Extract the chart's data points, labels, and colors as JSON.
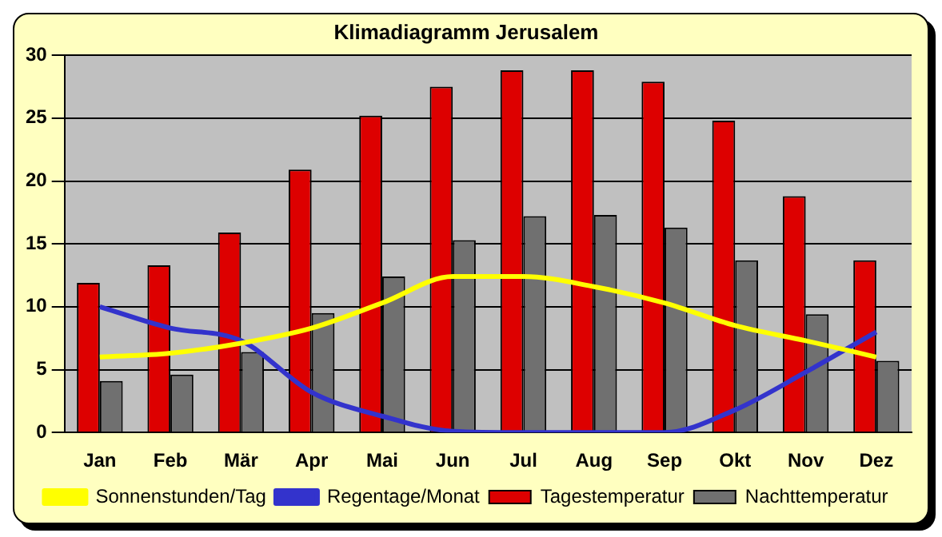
{
  "chart_data": {
    "type": "bar",
    "title": "Klimadiagramm Jerusalem",
    "categories": [
      "Jan",
      "Feb",
      "Mär",
      "Apr",
      "Mai",
      "Jun",
      "Jul",
      "Aug",
      "Sep",
      "Okt",
      "Nov",
      "Dez"
    ],
    "series": [
      {
        "name": "Tagestemperatur",
        "color": "#dd0000",
        "values": [
          11.9,
          13.3,
          15.9,
          20.9,
          25.2,
          27.5,
          28.8,
          28.8,
          27.9,
          24.8,
          18.8,
          13.7
        ]
      },
      {
        "name": "Nachttemperatur",
        "color": "#707070",
        "values": [
          4.1,
          4.6,
          6.4,
          9.5,
          12.4,
          15.3,
          17.2,
          17.3,
          16.3,
          13.7,
          9.4,
          5.7
        ]
      },
      {
        "name": "Sonnenstunden/Tag",
        "type": "line",
        "color": "#ffff00",
        "values": [
          6.0,
          6.3,
          7.1,
          8.3,
          10.3,
          12.4,
          12.4,
          11.6,
          10.3,
          8.5,
          7.3,
          6.0
        ]
      },
      {
        "name": "Regentage/Monat",
        "type": "line",
        "color": "#3333cc",
        "values": [
          10.0,
          8.3,
          7.3,
          3.2,
          1.3,
          0.1,
          0,
          0,
          0,
          1.8,
          4.8,
          8.0
        ]
      }
    ],
    "ylim": [
      0,
      30
    ],
    "yticks": [
      0,
      5,
      10,
      15,
      20,
      25,
      30
    ],
    "grid": "y",
    "legend": "bottom",
    "marker": "none",
    "line_style": "solid"
  }
}
